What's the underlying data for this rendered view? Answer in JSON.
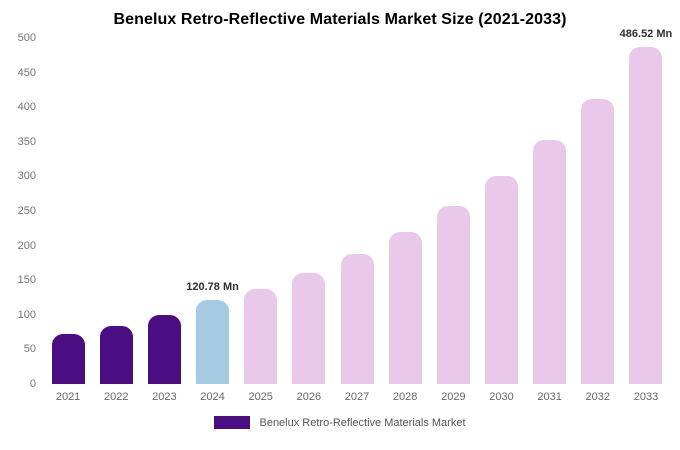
{
  "title": "Benelux Retro-Reflective Materials Market Size (2021-2033)",
  "legend": {
    "label": "Benelux Retro-Reflective Materials Market",
    "swatch_color": "#4b0d82"
  },
  "chart_data": {
    "type": "bar",
    "title": "Benelux Retro-Reflective Materials Market Size (2021-2033)",
    "categories": [
      "2021",
      "2022",
      "2023",
      "2024",
      "2025",
      "2026",
      "2027",
      "2028",
      "2029",
      "2030",
      "2031",
      "2032",
      "2033"
    ],
    "values": [
      72,
      84,
      100,
      120.78,
      137,
      160,
      188,
      220,
      257,
      301,
      352,
      412,
      486.52
    ],
    "unit": "Mn",
    "segments": [
      "historical",
      "historical",
      "historical",
      "current",
      "forecast",
      "forecast",
      "forecast",
      "forecast",
      "forecast",
      "forecast",
      "forecast",
      "forecast",
      "forecast"
    ],
    "segment_colors": {
      "historical": "#4b0d82",
      "current": "#a5cbe2",
      "forecast": "#e9c8ea"
    },
    "data_labels": [
      {
        "category": "2024",
        "text": "120.78 Mn"
      },
      {
        "category": "2033",
        "text": "486.52 Mn"
      }
    ],
    "xlabel": "",
    "ylabel": "",
    "ylim": [
      0,
      500
    ],
    "ytick_step": 50,
    "grid": false,
    "legend_position": "bottom",
    "series_name": "Benelux Retro-Reflective Materials Market"
  }
}
